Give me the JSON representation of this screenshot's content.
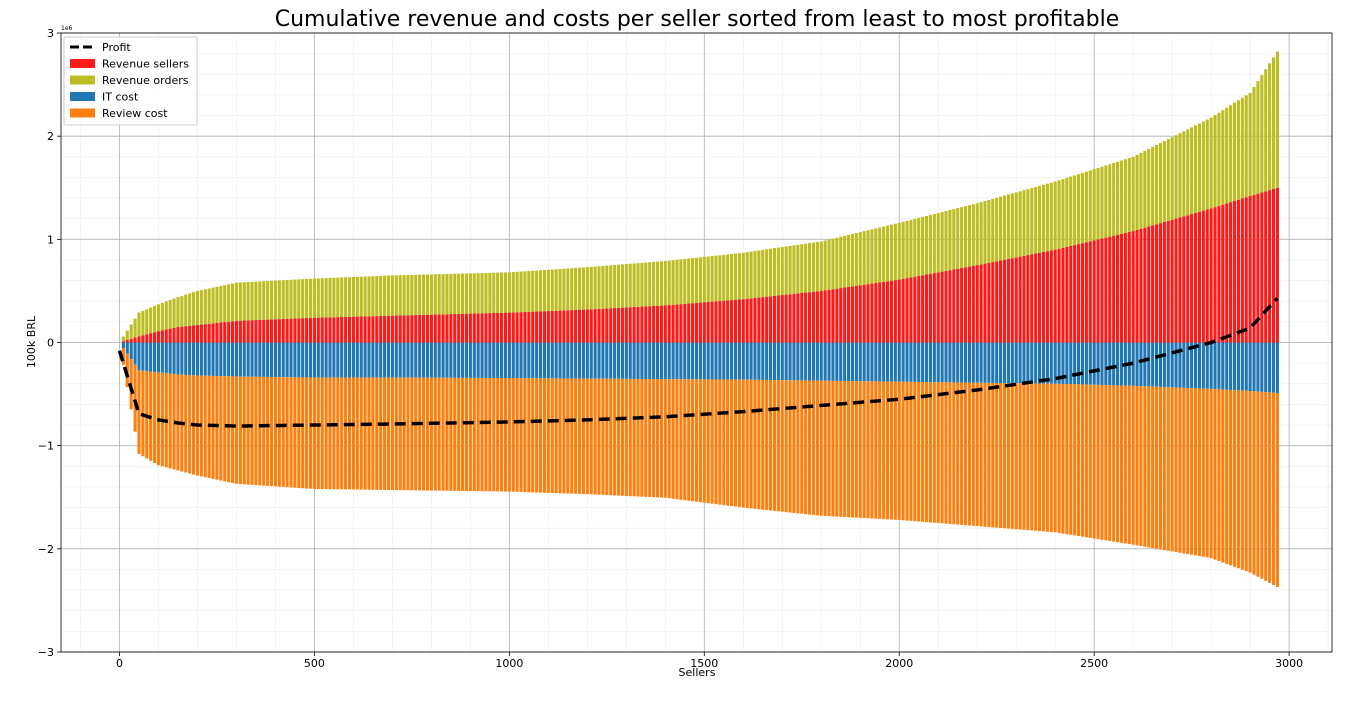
{
  "chart_data": {
    "type": "bar",
    "title": "Cumulative revenue and costs per seller sorted from least to most profitable",
    "xlabel": "Sellers",
    "ylabel": "100k BRL",
    "y_offset_label": "1e6",
    "xlim": [
      -150,
      3110
    ],
    "ylim": [
      -3000000,
      3000000
    ],
    "x_ticks": [
      0,
      500,
      1000,
      1500,
      2000,
      2500,
      3000
    ],
    "x_tick_labels": [
      "0",
      "500",
      "1000",
      "1500",
      "2000",
      "2500",
      "3000"
    ],
    "y_ticks": [
      -3000000,
      -2000000,
      -1000000,
      0,
      1000000,
      2000000,
      3000000
    ],
    "y_tick_labels": [
      "−3",
      "−2",
      "−1",
      "0",
      "1",
      "2",
      "3"
    ],
    "grid": true,
    "minor_grid": true,
    "legend_position": "top-left",
    "legend": [
      {
        "label": "Profit",
        "kind": "line",
        "color": "#000000"
      },
      {
        "label": "Revenue sellers",
        "kind": "patch",
        "color": "#ff1a1a"
      },
      {
        "label": "Revenue orders",
        "kind": "patch",
        "color": "#bcbd22"
      },
      {
        "label": "IT cost",
        "kind": "patch",
        "color": "#1f77b4"
      },
      {
        "label": "Review cost",
        "kind": "patch",
        "color": "#ff7f0e"
      }
    ],
    "x": [
      0,
      50,
      100,
      150,
      200,
      300,
      500,
      700,
      1000,
      1200,
      1400,
      1600,
      1800,
      2000,
      2200,
      2400,
      2600,
      2800,
      2900,
      2970
    ],
    "series": [
      {
        "name": "Revenue sellers",
        "stack": "positive",
        "color": "#ff1a1a",
        "values": [
          0,
          60000,
          110000,
          150000,
          170000,
          210000,
          240000,
          260000,
          290000,
          320000,
          360000,
          420000,
          500000,
          610000,
          750000,
          900000,
          1080000,
          1300000,
          1420000,
          1500000
        ]
      },
      {
        "name": "Revenue orders",
        "stack": "positive",
        "color": "#bcbd22",
        "values": [
          0,
          230000,
          260000,
          290000,
          330000,
          370000,
          380000,
          390000,
          390000,
          410000,
          430000,
          450000,
          480000,
          550000,
          600000,
          660000,
          720000,
          880000,
          1000000,
          1320000
        ]
      },
      {
        "name": "IT cost",
        "stack": "negative",
        "color": "#1f77b4",
        "values": [
          0,
          -270000,
          -290000,
          -310000,
          -320000,
          -330000,
          -340000,
          -340000,
          -345000,
          -350000,
          -355000,
          -360000,
          -370000,
          -380000,
          -390000,
          -400000,
          -420000,
          -450000,
          -470000,
          -490000
        ]
      },
      {
        "name": "Review cost",
        "stack": "negative",
        "color": "#ff7f0e",
        "values": [
          0,
          -810000,
          -900000,
          -930000,
          -970000,
          -1040000,
          -1080000,
          -1090000,
          -1100000,
          -1120000,
          -1150000,
          -1240000,
          -1310000,
          -1340000,
          -1390000,
          -1440000,
          -1540000,
          -1640000,
          -1760000,
          -1880000
        ]
      },
      {
        "name": "Profit",
        "kind": "line",
        "color": "#000000",
        "values": [
          -80000,
          -690000,
          -750000,
          -780000,
          -800000,
          -810000,
          -800000,
          -790000,
          -770000,
          -750000,
          -720000,
          -670000,
          -610000,
          -550000,
          -460000,
          -350000,
          -200000,
          0,
          140000,
          430000
        ]
      }
    ]
  }
}
